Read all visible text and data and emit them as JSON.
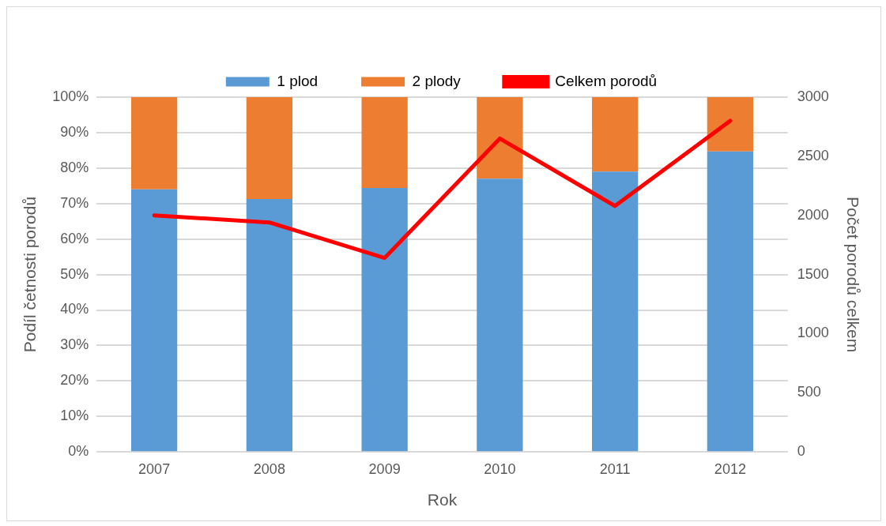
{
  "chart_data": {
    "type": "bar",
    "stacked": true,
    "xlabel": "Rok",
    "ylabel": "Podíl četnosti porodů",
    "y2label": "Počet porodů celkem",
    "categories": [
      "2007",
      "2008",
      "2009",
      "2010",
      "2011",
      "2012"
    ],
    "series": [
      {
        "name": "1 plod",
        "color": "#5b9bd5",
        "values": [
          74,
          71.3,
          74.4,
          77,
          79,
          84.7
        ]
      },
      {
        "name": "2 plody",
        "color": "#ed7d31",
        "values": [
          26,
          28.7,
          25.6,
          23,
          21,
          15.3
        ]
      },
      {
        "name": "Celkem porodů",
        "type": "line",
        "axis": "y2",
        "color": "#ff0000",
        "values": [
          2000,
          1940,
          1640,
          2650,
          2080,
          2800
        ]
      }
    ],
    "ylim": [
      0,
      100
    ],
    "yticks": [
      {
        "value": 0,
        "label": "0%"
      },
      {
        "value": 10,
        "label": "10%"
      },
      {
        "value": 20,
        "label": "20%"
      },
      {
        "value": 30,
        "label": "30%"
      },
      {
        "value": 40,
        "label": "40%"
      },
      {
        "value": 50,
        "label": "50%"
      },
      {
        "value": 60,
        "label": "60%"
      },
      {
        "value": 70,
        "label": "70%"
      },
      {
        "value": 80,
        "label": "80%"
      },
      {
        "value": 90,
        "label": "90%"
      },
      {
        "value": 100,
        "label": "100%"
      }
    ],
    "y2lim": [
      0,
      3000
    ],
    "y2ticks": [
      0,
      500,
      1000,
      1500,
      2000,
      2500,
      3000
    ],
    "grid": "y",
    "legend": "top",
    "marker": "none"
  }
}
